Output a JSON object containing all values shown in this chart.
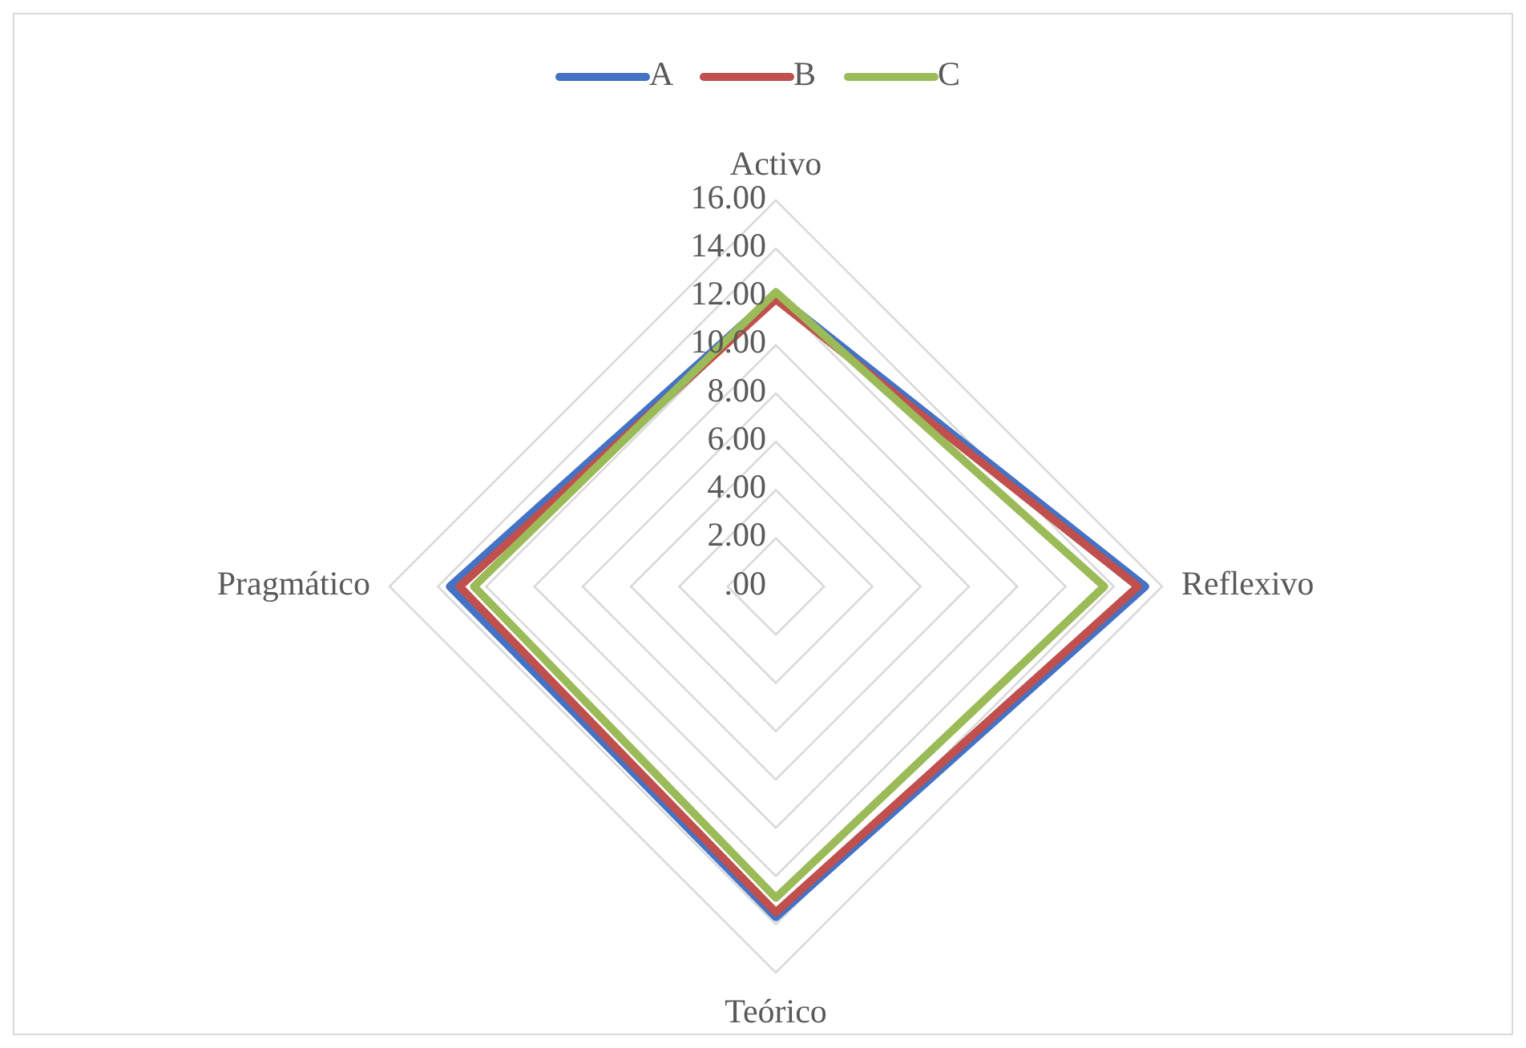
{
  "chart_data": {
    "type": "radar",
    "categories": [
      "Activo",
      "Reflexivo",
      "Teórico",
      "Pragmático"
    ],
    "series": [
      {
        "name": "A",
        "color": "#4472c4",
        "values": [
          12.1,
          15.3,
          13.7,
          13.5
        ]
      },
      {
        "name": "B",
        "color": "#c0504d",
        "values": [
          11.9,
          15.0,
          13.5,
          13.1
        ]
      },
      {
        "name": "C",
        "color": "#9bbb59",
        "values": [
          12.2,
          13.6,
          12.9,
          12.5
        ]
      }
    ],
    "ylim": [
      0,
      16
    ],
    "yticks": [
      {
        "value": 0,
        "label": ".00"
      },
      {
        "value": 2,
        "label": "2.00"
      },
      {
        "value": 4,
        "label": "4.00"
      },
      {
        "value": 6,
        "label": "6.00"
      },
      {
        "value": 8,
        "label": "8.00"
      },
      {
        "value": 10,
        "label": "10.00"
      },
      {
        "value": 12,
        "label": "12.00"
      },
      {
        "value": 14,
        "label": "14.00"
      },
      {
        "value": 16,
        "label": "16.00"
      }
    ],
    "grid": true,
    "legend": "top"
  }
}
